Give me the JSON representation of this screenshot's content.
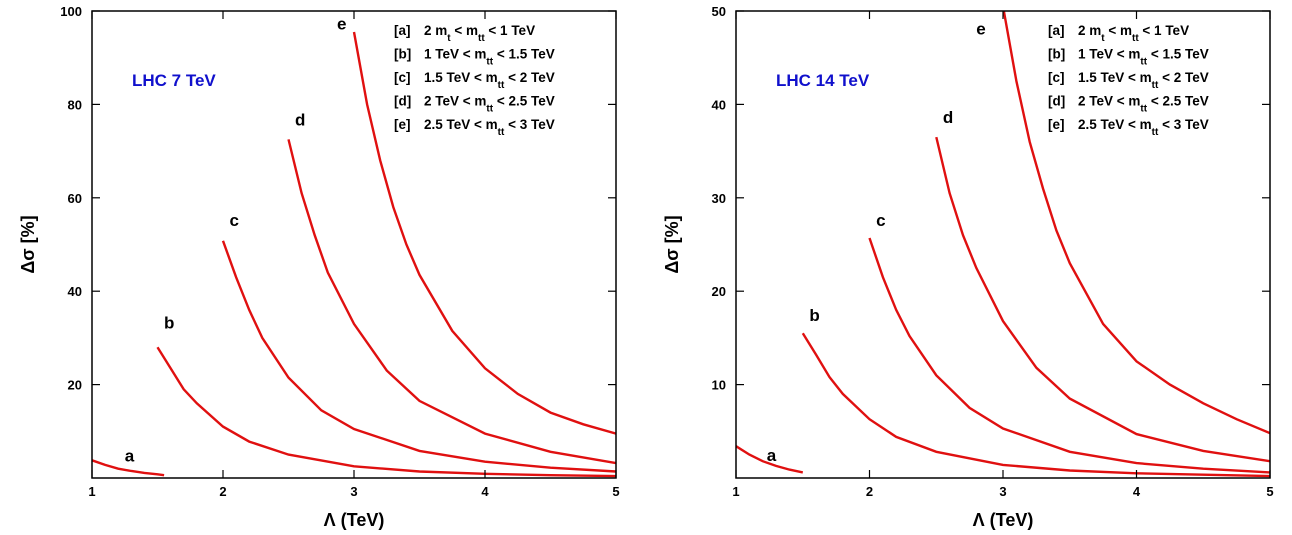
{
  "chart_data": [
    {
      "type": "line",
      "title": "LHC 7 TeV",
      "title_color": "#1010cc",
      "xlabel": "Λ (TeV)",
      "ylabel": "Δσ [%]",
      "xlim": [
        1,
        5
      ],
      "ylim": [
        0,
        100
      ],
      "xticks": [
        1,
        2,
        3,
        4,
        5
      ],
      "yticks": [
        20,
        40,
        60,
        80,
        100
      ],
      "grid": false,
      "legend_position": "top-right",
      "line_color": "#e01010",
      "legend": [
        {
          "tag": "[a]",
          "text": "2 m_t < m_tt < 1 TeV"
        },
        {
          "tag": "[b]",
          "text": "1 TeV < m_tt < 1.5 TeV"
        },
        {
          "tag": "[c]",
          "text": "1.5 TeV < m_tt < 2 TeV"
        },
        {
          "tag": "[d]",
          "text": "2 TeV < m_tt < 2.5 TeV"
        },
        {
          "tag": "[e]",
          "text": "2.5 TeV < m_tt < 3 TeV"
        }
      ],
      "series": [
        {
          "name": "a",
          "label_at": [
            1.25,
            3.5
          ],
          "x": [
            1.0,
            1.1,
            1.2,
            1.3,
            1.4,
            1.5,
            1.55
          ],
          "y": [
            3.8,
            2.8,
            2.0,
            1.5,
            1.1,
            0.8,
            0.6
          ]
        },
        {
          "name": "b",
          "label_at": [
            1.55,
            32.0
          ],
          "x": [
            1.5,
            1.6,
            1.7,
            1.8,
            2.0,
            2.2,
            2.5,
            3.0,
            3.5,
            4.0,
            4.5,
            5.0
          ],
          "y": [
            28.0,
            23.5,
            19.0,
            16.0,
            11.0,
            7.8,
            5.0,
            2.5,
            1.4,
            0.9,
            0.6,
            0.4
          ]
        },
        {
          "name": "c",
          "label_at": [
            2.05,
            54.0
          ],
          "x": [
            2.0,
            2.1,
            2.2,
            2.3,
            2.5,
            2.75,
            3.0,
            3.5,
            4.0,
            4.5,
            5.0
          ],
          "y": [
            50.8,
            43.0,
            36.0,
            30.0,
            21.5,
            14.5,
            10.5,
            5.8,
            3.5,
            2.2,
            1.4
          ]
        },
        {
          "name": "d",
          "label_at": [
            2.55,
            75.5
          ],
          "x": [
            2.5,
            2.6,
            2.7,
            2.8,
            3.0,
            3.25,
            3.5,
            4.0,
            4.5,
            5.0
          ],
          "y": [
            72.5,
            61.0,
            52.0,
            44.0,
            33.0,
            23.0,
            16.5,
            9.5,
            5.6,
            3.2
          ]
        },
        {
          "name": "e",
          "label_at": [
            2.87,
            96.0
          ],
          "x": [
            3.0,
            3.1,
            3.2,
            3.3,
            3.4,
            3.5,
            3.75,
            4.0,
            4.25,
            4.5,
            4.75,
            5.0
          ],
          "y": [
            95.5,
            80.0,
            68.0,
            58.0,
            50.0,
            43.5,
            31.5,
            23.5,
            18.0,
            14.0,
            11.5,
            9.5
          ]
        }
      ]
    },
    {
      "type": "line",
      "title": "LHC 14 TeV",
      "title_color": "#1010cc",
      "xlabel": "Λ (TeV)",
      "ylabel": "Δσ [%]",
      "xlim": [
        1,
        5
      ],
      "ylim": [
        0,
        50
      ],
      "xticks": [
        1,
        2,
        3,
        4,
        5
      ],
      "yticks": [
        10,
        20,
        30,
        40,
        50
      ],
      "grid": false,
      "legend_position": "top-right",
      "line_color": "#e01010",
      "legend": [
        {
          "tag": "[a]",
          "text": "2 m_t < m_tt < 1 TeV"
        },
        {
          "tag": "[b]",
          "text": "1 TeV < m_tt < 1.5 TeV"
        },
        {
          "tag": "[c]",
          "text": "1.5 TeV < m_tt < 2 TeV"
        },
        {
          "tag": "[d]",
          "text": "2 TeV < m_tt < 2.5 TeV"
        },
        {
          "tag": "[e]",
          "text": "2.5 TeV < m_tt < 3 TeV"
        }
      ],
      "series": [
        {
          "name": "a",
          "label_at": [
            1.23,
            1.8
          ],
          "x": [
            1.0,
            1.1,
            1.2,
            1.3,
            1.4,
            1.5
          ],
          "y": [
            3.4,
            2.5,
            1.8,
            1.3,
            0.9,
            0.6
          ]
        },
        {
          "name": "b",
          "label_at": [
            1.55,
            16.8
          ],
          "x": [
            1.5,
            1.6,
            1.7,
            1.8,
            2.0,
            2.2,
            2.5,
            3.0,
            3.5,
            4.0,
            4.5,
            5.0
          ],
          "y": [
            15.5,
            13.2,
            10.8,
            9.0,
            6.3,
            4.4,
            2.8,
            1.4,
            0.8,
            0.5,
            0.35,
            0.2
          ]
        },
        {
          "name": "c",
          "label_at": [
            2.05,
            27.0
          ],
          "x": [
            2.0,
            2.1,
            2.2,
            2.3,
            2.5,
            2.75,
            3.0,
            3.5,
            4.0,
            4.5,
            5.0
          ],
          "y": [
            25.7,
            21.5,
            18.0,
            15.2,
            11.0,
            7.5,
            5.3,
            2.8,
            1.6,
            1.0,
            0.6
          ]
        },
        {
          "name": "d",
          "label_at": [
            2.55,
            38.0
          ],
          "x": [
            2.5,
            2.6,
            2.7,
            2.8,
            3.0,
            3.25,
            3.5,
            4.0,
            4.5,
            5.0
          ],
          "y": [
            36.5,
            30.5,
            26.0,
            22.5,
            16.8,
            11.8,
            8.5,
            4.7,
            2.9,
            1.8
          ]
        },
        {
          "name": "e",
          "label_at": [
            2.8,
            47.5
          ],
          "x": [
            3.0,
            3.1,
            3.2,
            3.3,
            3.4,
            3.5,
            3.75,
            4.0,
            4.25,
            4.5,
            4.75,
            5.0
          ],
          "y": [
            50.5,
            42.5,
            36.0,
            31.0,
            26.5,
            23.0,
            16.5,
            12.5,
            10.0,
            8.0,
            6.3,
            4.8
          ]
        }
      ]
    }
  ]
}
